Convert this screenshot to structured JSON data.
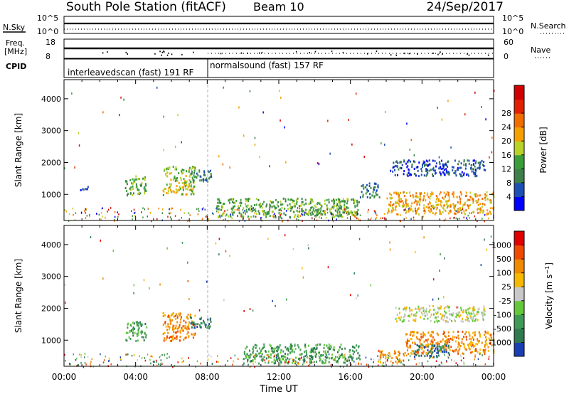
{
  "header": {
    "station": "South Pole Station (fitACF)",
    "beam": "Beam 10",
    "date": "24/Sep/2017"
  },
  "strip_panels": {
    "nsky_label": "N.Sky",
    "nsky_ticks": [
      "10^5",
      "10^0"
    ],
    "nsearch_label": "N.Search",
    "nsearch_ticks": [
      "10^5",
      "10^0"
    ],
    "freq_label_1": "Freq.",
    "freq_label_2": "[MHz]",
    "freq_ticks": [
      "18",
      "8"
    ],
    "nave_label": "Nave",
    "nave_ticks": [
      "60",
      "0"
    ],
    "cpid_label": "CPID",
    "cpid_segments": [
      {
        "label": "interleavedscan (fast) 191 RF",
        "start_hour": 0,
        "end_hour": 8
      },
      {
        "label": "normalsound (fast) 157 RF",
        "start_hour": 8,
        "end_hour": 24
      }
    ]
  },
  "chart_data": [
    {
      "type": "heatmap",
      "panel": "power",
      "ylabel": "Slant Range [km]",
      "xlabel": "Time UT",
      "xlim_hours": [
        0,
        24
      ],
      "ylim_km": [
        180,
        4600
      ],
      "x_ticks": [
        "00:00",
        "04:00",
        "08:00",
        "12:00",
        "16:00",
        "20:00",
        "00:00"
      ],
      "y_ticks": [
        "1000",
        "2000",
        "3000",
        "4000"
      ],
      "colorbar": {
        "label": "Power [dB]",
        "ticks": [
          "4",
          "8",
          "12",
          "16",
          "20",
          "24",
          "28"
        ],
        "colors": [
          "#0000ff",
          "#1e4fb4",
          "#3f7f4a",
          "#3b9e3b",
          "#b8d22a",
          "#f6a000",
          "#f06d00",
          "#e02000",
          "#d00000"
        ]
      },
      "scatter_regions": [
        {
          "t0": 0.9,
          "t1": 1.4,
          "r0": 1150,
          "r1": 1300,
          "level": 1
        },
        {
          "t0": 3.4,
          "t1": 4.6,
          "r0": 1000,
          "r1": 1600,
          "level": 3
        },
        {
          "t0": 5.5,
          "t1": 7.3,
          "r0": 1000,
          "r1": 1900,
          "level": 4
        },
        {
          "t0": 7.0,
          "t1": 8.2,
          "r0": 1400,
          "r1": 1800,
          "level": 2
        },
        {
          "t0": 8.5,
          "t1": 16.5,
          "r0": 300,
          "r1": 900,
          "level": 3
        },
        {
          "t0": 16.5,
          "t1": 17.6,
          "r0": 900,
          "r1": 1400,
          "level": 2
        },
        {
          "t0": 18.0,
          "t1": 24.0,
          "r0": 400,
          "r1": 1100,
          "level": 5
        },
        {
          "t0": 18.2,
          "t1": 23.5,
          "r0": 1600,
          "r1": 2100,
          "level": 1
        }
      ]
    },
    {
      "type": "heatmap",
      "panel": "velocity",
      "ylabel": "Slant Range [km]",
      "xlabel": "Time UT",
      "xlim_hours": [
        0,
        24
      ],
      "ylim_km": [
        180,
        4600
      ],
      "x_ticks": [
        "00:00",
        "04:00",
        "08:00",
        "12:00",
        "16:00",
        "20:00",
        "00:00"
      ],
      "y_ticks": [
        "1000",
        "2000",
        "3000",
        "4000"
      ],
      "colorbar": {
        "label": "Velocity [m s^-1]",
        "ticks": [
          "1000",
          "500",
          "100",
          "25",
          "-25",
          "-100",
          "-500",
          "-1000"
        ],
        "colors": [
          "#1a3fb4",
          "#2f7a4f",
          "#3f9a55",
          "#63c83a",
          "#c8c8c8",
          "#f6b800",
          "#f08a00",
          "#f04a00",
          "#e00000"
        ]
      },
      "scatter_regions": [
        {
          "t0": 3.4,
          "t1": 4.6,
          "r0": 1000,
          "r1": 1600,
          "level": 2
        },
        {
          "t0": 5.5,
          "t1": 7.3,
          "r0": 1000,
          "r1": 1900,
          "level": 6
        },
        {
          "t0": 7.0,
          "t1": 8.2,
          "r0": 1400,
          "r1": 1800,
          "level": 1
        },
        {
          "t0": 10.0,
          "t1": 16.5,
          "r0": 300,
          "r1": 900,
          "level": 2
        },
        {
          "t0": 17.5,
          "t1": 19.0,
          "r0": 300,
          "r1": 700,
          "level": 6
        },
        {
          "t0": 19.0,
          "t1": 24.0,
          "r0": 600,
          "r1": 1300,
          "level": 6
        },
        {
          "t0": 19.5,
          "t1": 21.5,
          "r0": 500,
          "r1": 900,
          "level": 1
        },
        {
          "t0": 18.5,
          "t1": 23.5,
          "r0": 1600,
          "r1": 2100,
          "level": 4
        }
      ]
    }
  ]
}
